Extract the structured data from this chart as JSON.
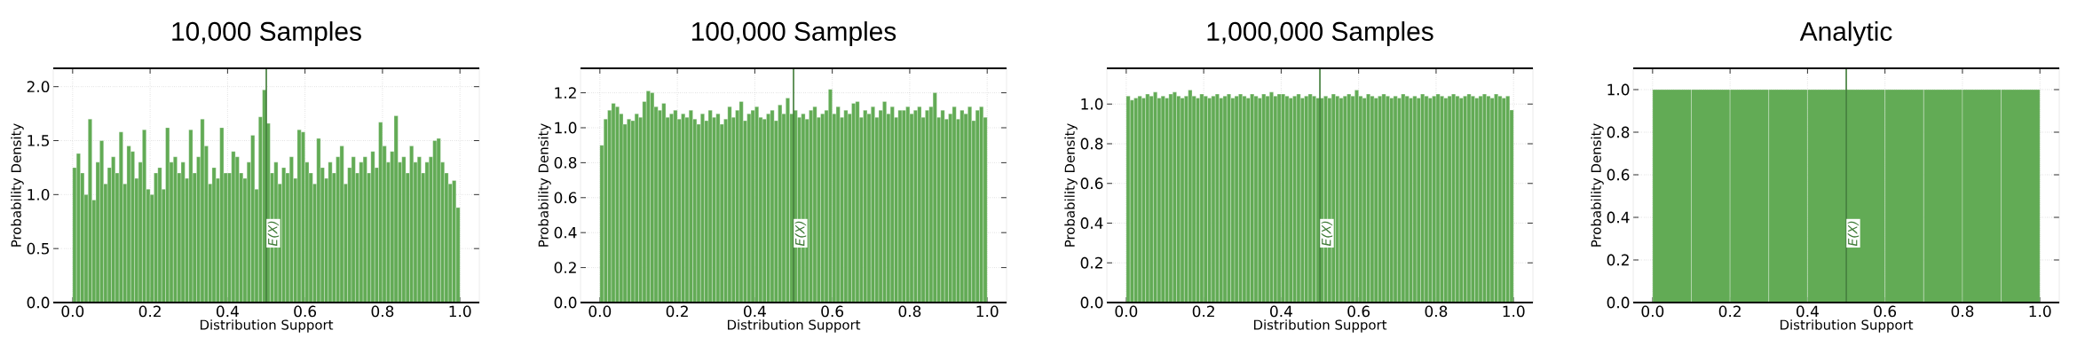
{
  "chart_data": [
    {
      "type": "histogram",
      "title": "10,000 Samples",
      "xlabel": "Distribution Support",
      "ylabel": "Probability Density",
      "color": "#62ab55",
      "grid": true,
      "xlim": [
        -0.05,
        1.05
      ],
      "ylim": [
        0,
        2.17
      ],
      "xticks": [
        {
          "value": 0,
          "label": "0.0"
        },
        {
          "value": 0.2,
          "label": "0.2"
        },
        {
          "value": 0.4,
          "label": "0.4"
        },
        {
          "value": 0.6,
          "label": "0.6"
        },
        {
          "value": 0.8,
          "label": "0.8"
        },
        {
          "value": 1,
          "label": "1.0"
        }
      ],
      "yticks": [
        {
          "value": 0,
          "label": "0.0"
        },
        {
          "value": 0.5,
          "label": "0.5"
        },
        {
          "value": 1,
          "label": "1.0"
        },
        {
          "value": 1.5,
          "label": "1.5"
        },
        {
          "value": 2,
          "label": "2.0"
        }
      ],
      "ref_lines": [
        {
          "axis": "x",
          "value": 0.5,
          "label": "E(X)",
          "color": "#3d7a35"
        }
      ],
      "bins": [
        0,
        0.01,
        0.02,
        0.03,
        0.04,
        0.05,
        0.06,
        0.07,
        0.08,
        0.09,
        0.1,
        0.11,
        0.12,
        0.13,
        0.14,
        0.15,
        0.16,
        0.17,
        0.18,
        0.19,
        0.2,
        0.21,
        0.22,
        0.23,
        0.24,
        0.25,
        0.26,
        0.27,
        0.28,
        0.29,
        0.3,
        0.31,
        0.32,
        0.33,
        0.34,
        0.35,
        0.36,
        0.37,
        0.38,
        0.39,
        0.4,
        0.41,
        0.42,
        0.43,
        0.44,
        0.45,
        0.46,
        0.47,
        0.48,
        0.49,
        0.5,
        0.51,
        0.52,
        0.53,
        0.54,
        0.55,
        0.56,
        0.57,
        0.58,
        0.59,
        0.6,
        0.61,
        0.62,
        0.63,
        0.64,
        0.65,
        0.66,
        0.67,
        0.68,
        0.69,
        0.7,
        0.71,
        0.72,
        0.73,
        0.74,
        0.75,
        0.76,
        0.77,
        0.78,
        0.79,
        0.8,
        0.81,
        0.82,
        0.83,
        0.84,
        0.85,
        0.86,
        0.87,
        0.88,
        0.89,
        0.9,
        0.91,
        0.92,
        0.93,
        0.94,
        0.95,
        0.96,
        0.97,
        0.98,
        0.99,
        1
      ],
      "values": [
        1.25,
        1.38,
        1.2,
        1.0,
        1.7,
        0.95,
        1.3,
        1.5,
        1.1,
        1.25,
        1.35,
        1.2,
        1.58,
        1.1,
        1.45,
        1.4,
        1.15,
        1.3,
        1.6,
        1.05,
        1.0,
        1.2,
        1.25,
        1.05,
        1.62,
        1.3,
        1.35,
        1.2,
        1.3,
        1.15,
        1.6,
        1.2,
        1.35,
        1.7,
        1.45,
        1.1,
        1.25,
        1.15,
        1.62,
        1.2,
        1.2,
        1.4,
        1.35,
        1.2,
        1.15,
        1.3,
        1.55,
        1.05,
        1.72,
        1.97,
        1.66,
        1.2,
        1.3,
        1.1,
        1.25,
        1.2,
        1.35,
        1.15,
        1.6,
        1.58,
        1.3,
        1.2,
        1.1,
        1.52,
        1.25,
        1.15,
        1.3,
        1.2,
        1.35,
        1.45,
        1.1,
        1.25,
        1.35,
        1.2,
        1.3,
        1.35,
        1.2,
        1.4,
        1.25,
        1.67,
        1.45,
        1.3,
        1.4,
        1.73,
        1.3,
        1.35,
        1.2,
        1.45,
        1.3,
        1.35,
        1.2,
        1.3,
        1.35,
        1.5,
        1.52,
        1.3,
        1.2,
        1.1,
        1.13,
        0.88
      ]
    },
    {
      "type": "histogram",
      "title": "100,000 Samples",
      "xlabel": "Distribution Support",
      "ylabel": "Probability Density",
      "color": "#62ab55",
      "grid": true,
      "xlim": [
        -0.05,
        1.05
      ],
      "ylim": [
        0,
        1.34
      ],
      "xticks": [
        {
          "value": 0,
          "label": "0.0"
        },
        {
          "value": 0.2,
          "label": "0.2"
        },
        {
          "value": 0.4,
          "label": "0.4"
        },
        {
          "value": 0.6,
          "label": "0.6"
        },
        {
          "value": 0.8,
          "label": "0.8"
        },
        {
          "value": 1,
          "label": "1.0"
        }
      ],
      "yticks": [
        {
          "value": 0,
          "label": "0.0"
        },
        {
          "value": 0.2,
          "label": "0.2"
        },
        {
          "value": 0.4,
          "label": "0.4"
        },
        {
          "value": 0.6,
          "label": "0.6"
        },
        {
          "value": 0.8,
          "label": "0.8"
        },
        {
          "value": 1,
          "label": "1.0"
        },
        {
          "value": 1.2,
          "label": "1.2"
        }
      ],
      "ref_lines": [
        {
          "axis": "x",
          "value": 0.5,
          "label": "E(X)",
          "color": "#3d7a35"
        }
      ],
      "bins": [
        0,
        0.01,
        0.02,
        0.03,
        0.04,
        0.05,
        0.06,
        0.07,
        0.08,
        0.09,
        0.1,
        0.11,
        0.12,
        0.13,
        0.14,
        0.15,
        0.16,
        0.17,
        0.18,
        0.19,
        0.2,
        0.21,
        0.22,
        0.23,
        0.24,
        0.25,
        0.26,
        0.27,
        0.28,
        0.29,
        0.3,
        0.31,
        0.32,
        0.33,
        0.34,
        0.35,
        0.36,
        0.37,
        0.38,
        0.39,
        0.4,
        0.41,
        0.42,
        0.43,
        0.44,
        0.45,
        0.46,
        0.47,
        0.48,
        0.49,
        0.5,
        0.51,
        0.52,
        0.53,
        0.54,
        0.55,
        0.56,
        0.57,
        0.58,
        0.59,
        0.6,
        0.61,
        0.62,
        0.63,
        0.64,
        0.65,
        0.66,
        0.67,
        0.68,
        0.69,
        0.7,
        0.71,
        0.72,
        0.73,
        0.74,
        0.75,
        0.76,
        0.77,
        0.78,
        0.79,
        0.8,
        0.81,
        0.82,
        0.83,
        0.84,
        0.85,
        0.86,
        0.87,
        0.88,
        0.89,
        0.9,
        0.91,
        0.92,
        0.93,
        0.94,
        0.95,
        0.96,
        0.97,
        0.98,
        0.99,
        1
      ],
      "values": [
        0.9,
        1.05,
        1.1,
        1.14,
        1.12,
        1.08,
        1.02,
        1.05,
        1.04,
        1.08,
        1.06,
        1.15,
        1.21,
        1.2,
        1.12,
        1.1,
        1.14,
        1.06,
        1.08,
        1.1,
        1.05,
        1.08,
        1.06,
        1.1,
        1.05,
        1.02,
        1.08,
        1.04,
        1.1,
        1.06,
        1.08,
        1.02,
        1.05,
        1.12,
        1.06,
        1.1,
        1.15,
        1.04,
        1.08,
        1.1,
        1.12,
        1.06,
        1.05,
        1.08,
        1.1,
        1.04,
        1.13,
        1.08,
        1.17,
        1.08,
        1.1,
        1.06,
        1.08,
        1.05,
        1.1,
        1.12,
        1.06,
        1.08,
        1.1,
        1.22,
        1.08,
        1.12,
        1.06,
        1.1,
        1.08,
        1.14,
        1.15,
        1.06,
        1.1,
        1.08,
        1.12,
        1.06,
        1.1,
        1.15,
        1.08,
        1.12,
        1.06,
        1.1,
        1.1,
        1.12,
        1.08,
        1.1,
        1.12,
        1.06,
        1.1,
        1.12,
        1.2,
        1.06,
        1.1,
        1.05,
        1.08,
        1.12,
        1.05,
        1.1,
        1.08,
        1.12,
        1.04,
        1.1,
        1.12,
        1.06
      ]
    },
    {
      "type": "histogram",
      "title": "1,000,000 Samples",
      "xlabel": "Distribution Support",
      "ylabel": "Probability Density",
      "color": "#62ab55",
      "grid": true,
      "xlim": [
        -0.05,
        1.05
      ],
      "ylim": [
        0,
        1.18
      ],
      "xticks": [
        {
          "value": 0,
          "label": "0.0"
        },
        {
          "value": 0.2,
          "label": "0.2"
        },
        {
          "value": 0.4,
          "label": "0.4"
        },
        {
          "value": 0.6,
          "label": "0.6"
        },
        {
          "value": 0.8,
          "label": "0.8"
        },
        {
          "value": 1,
          "label": "1.0"
        }
      ],
      "yticks": [
        {
          "value": 0,
          "label": "0.0"
        },
        {
          "value": 0.2,
          "label": "0.2"
        },
        {
          "value": 0.4,
          "label": "0.4"
        },
        {
          "value": 0.6,
          "label": "0.6"
        },
        {
          "value": 0.8,
          "label": "0.8"
        },
        {
          "value": 1,
          "label": "1.0"
        }
      ],
      "ref_lines": [
        {
          "axis": "x",
          "value": 0.5,
          "label": "E(X)",
          "color": "#3d7a35"
        }
      ],
      "bins": [
        0,
        0.01,
        0.02,
        0.03,
        0.04,
        0.05,
        0.06,
        0.07,
        0.08,
        0.09,
        0.1,
        0.11,
        0.12,
        0.13,
        0.14,
        0.15,
        0.16,
        0.17,
        0.18,
        0.19,
        0.2,
        0.21,
        0.22,
        0.23,
        0.24,
        0.25,
        0.26,
        0.27,
        0.28,
        0.29,
        0.3,
        0.31,
        0.32,
        0.33,
        0.34,
        0.35,
        0.36,
        0.37,
        0.38,
        0.39,
        0.4,
        0.41,
        0.42,
        0.43,
        0.44,
        0.45,
        0.46,
        0.47,
        0.48,
        0.49,
        0.5,
        0.51,
        0.52,
        0.53,
        0.54,
        0.55,
        0.56,
        0.57,
        0.58,
        0.59,
        0.6,
        0.61,
        0.62,
        0.63,
        0.64,
        0.65,
        0.66,
        0.67,
        0.68,
        0.69,
        0.7,
        0.71,
        0.72,
        0.73,
        0.74,
        0.75,
        0.76,
        0.77,
        0.78,
        0.79,
        0.8,
        0.81,
        0.82,
        0.83,
        0.84,
        0.85,
        0.86,
        0.87,
        0.88,
        0.89,
        0.9,
        0.91,
        0.92,
        0.93,
        0.94,
        0.95,
        0.96,
        0.97,
        0.98,
        0.99,
        1
      ],
      "values": [
        1.04,
        1.02,
        1.03,
        1.04,
        1.03,
        1.05,
        1.04,
        1.06,
        1.03,
        1.04,
        1.03,
        1.05,
        1.06,
        1.04,
        1.03,
        1.04,
        1.07,
        1.04,
        1.03,
        1.05,
        1.04,
        1.03,
        1.04,
        1.05,
        1.03,
        1.04,
        1.05,
        1.03,
        1.04,
        1.05,
        1.04,
        1.03,
        1.05,
        1.04,
        1.03,
        1.05,
        1.04,
        1.06,
        1.04,
        1.05,
        1.05,
        1.04,
        1.03,
        1.04,
        1.05,
        1.03,
        1.04,
        1.05,
        1.04,
        1.03,
        1.03,
        1.04,
        1.03,
        1.05,
        1.04,
        1.03,
        1.04,
        1.05,
        1.04,
        1.07,
        1.04,
        1.03,
        1.05,
        1.04,
        1.03,
        1.04,
        1.05,
        1.04,
        1.03,
        1.04,
        1.03,
        1.05,
        1.04,
        1.03,
        1.04,
        1.03,
        1.05,
        1.04,
        1.03,
        1.04,
        1.05,
        1.04,
        1.03,
        1.04,
        1.05,
        1.04,
        1.03,
        1.04,
        1.05,
        1.04,
        1.03,
        1.04,
        1.05,
        1.04,
        1.03,
        1.05,
        1.04,
        1.03,
        1.04,
        0.97
      ]
    },
    {
      "type": "histogram",
      "title": "Analytic",
      "xlabel": "Distribution Support",
      "ylabel": "Probability Density",
      "color": "#62ab55",
      "grid": true,
      "xlim": [
        -0.05,
        1.05
      ],
      "ylim": [
        0,
        1.1
      ],
      "xticks": [
        {
          "value": 0,
          "label": "0.0"
        },
        {
          "value": 0.2,
          "label": "0.2"
        },
        {
          "value": 0.4,
          "label": "0.4"
        },
        {
          "value": 0.6,
          "label": "0.6"
        },
        {
          "value": 0.8,
          "label": "0.8"
        },
        {
          "value": 1,
          "label": "1.0"
        }
      ],
      "yticks": [
        {
          "value": 0,
          "label": "0.0"
        },
        {
          "value": 0.2,
          "label": "0.2"
        },
        {
          "value": 0.4,
          "label": "0.4"
        },
        {
          "value": 0.6,
          "label": "0.6"
        },
        {
          "value": 0.8,
          "label": "0.8"
        },
        {
          "value": 1,
          "label": "1.0"
        }
      ],
      "ref_lines": [
        {
          "axis": "x",
          "value": 0.5,
          "label": "E(X)",
          "color": "#3d7a35"
        }
      ],
      "bins": [
        0,
        0.1,
        0.2,
        0.3,
        0.4,
        0.5,
        0.6,
        0.7,
        0.8,
        0.9,
        1
      ],
      "values": [
        1,
        1,
        1,
        1,
        1,
        1,
        1,
        1,
        1,
        1
      ]
    }
  ]
}
